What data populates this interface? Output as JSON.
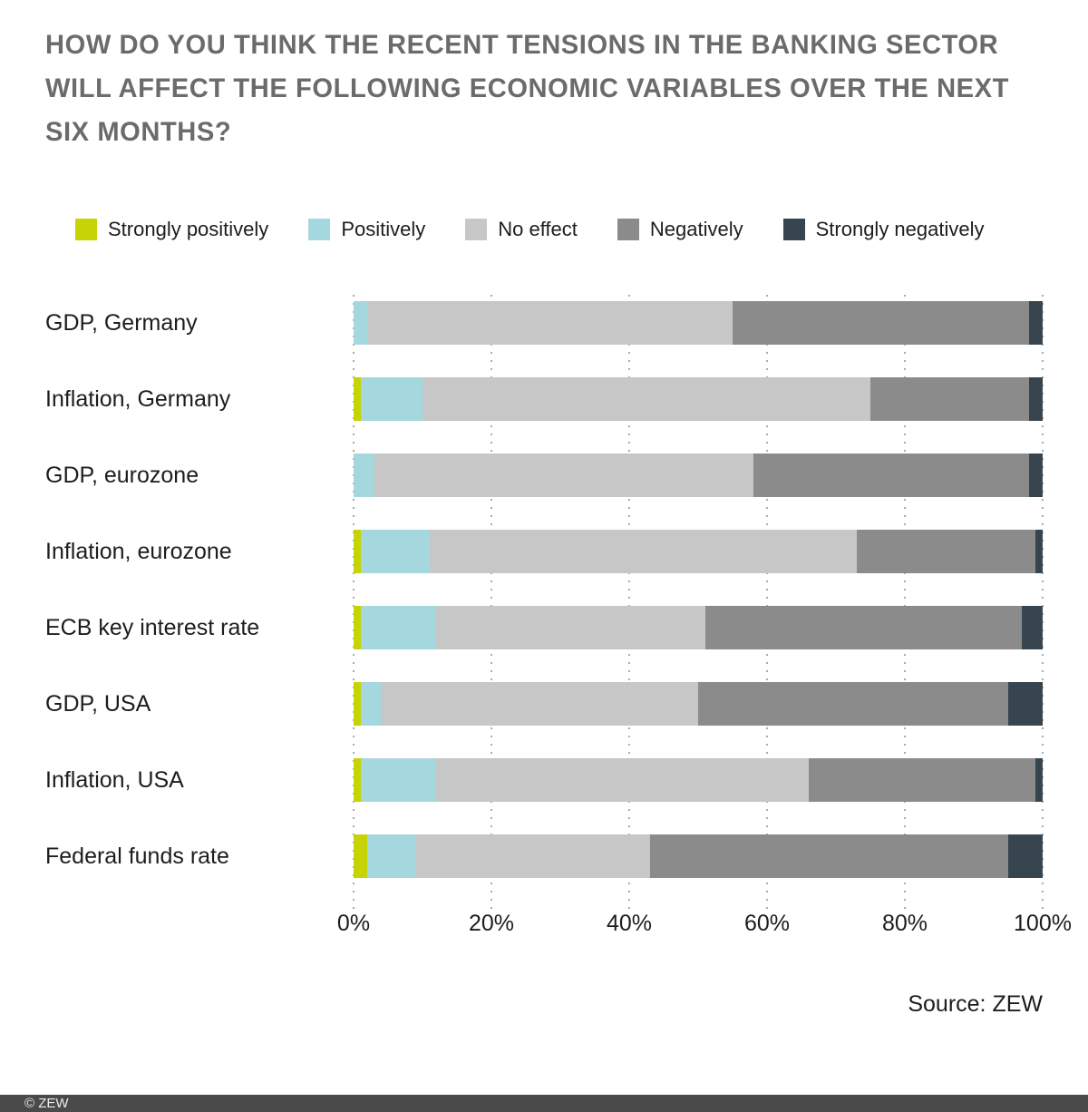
{
  "header": {
    "title": "HOW DO YOU THINK THE RECENT TENSIONS IN THE BANKING SECTOR WILL AFFECT THE FOLLOWING ECONOMIC VARIABLES OVER THE NEXT SIX MONTHS?",
    "title_lines": [
      "HOW DO YOU THINK THE RECENT TENSIONS IN THE BANKING SECTOR",
      "WILL AFFECT THE FOLLOWING ECONOMIC VARIABLES OVER THE NEXT",
      "SIX MONTHS?"
    ]
  },
  "chart_data": {
    "type": "bar",
    "stacked": true,
    "orientation": "horizontal",
    "grid": "dotted-vertical",
    "legend_position": "top",
    "xlim": [
      0,
      100
    ],
    "x_ticks": [
      "0%",
      "20%",
      "40%",
      "60%",
      "80%",
      "100%"
    ],
    "categories": [
      "GDP, Germany",
      "Inflation, Germany",
      "GDP, eurozone",
      "Inflation, eurozone",
      "ECB key interest rate",
      "GDP, USA",
      "Inflation, USA",
      "Federal funds rate"
    ],
    "series": [
      {
        "name": "Strongly positively",
        "color": "#c6d405",
        "values": [
          0,
          1,
          0,
          1,
          1,
          1,
          1,
          2
        ]
      },
      {
        "name": "Positively",
        "color": "#a5d7de",
        "values": [
          2,
          9,
          3,
          10,
          11,
          3,
          11,
          7
        ]
      },
      {
        "name": "No effect",
        "color": "#c7c7c7",
        "values": [
          53,
          65,
          55,
          62,
          39,
          46,
          54,
          34
        ]
      },
      {
        "name": "Negatively",
        "color": "#8b8b8b",
        "values": [
          43,
          23,
          40,
          26,
          46,
          45,
          33,
          52
        ]
      },
      {
        "name": "Strongly negatively",
        "color": "#36454e",
        "values": [
          2,
          2,
          2,
          1,
          3,
          5,
          1,
          5
        ]
      }
    ]
  },
  "source": {
    "label": "Source: ZEW"
  },
  "footer": {
    "copyright": "© ZEW"
  },
  "colors": {
    "title_gray": "#6b6b6b",
    "text": "#1d1d1b",
    "grid_dot": "#ababab",
    "footer_bg": "#4a4a4a"
  }
}
